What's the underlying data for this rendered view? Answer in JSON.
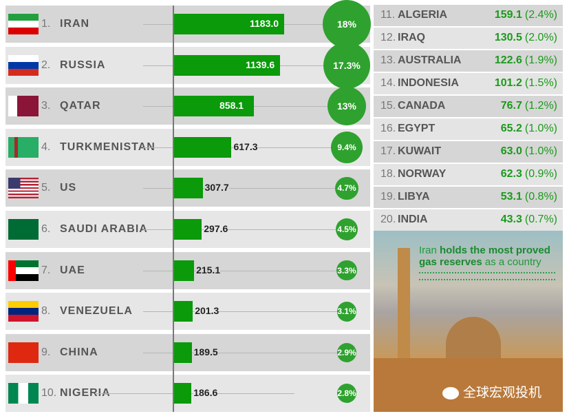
{
  "chart_data": {
    "type": "bar",
    "title": "",
    "categories": [
      "IRAN",
      "RUSSIA",
      "QATAR",
      "TURKMENISTAN",
      "US",
      "SAUDI ARABIA",
      "UAE",
      "VENEZUELA",
      "CHINA",
      "NIGERIA"
    ],
    "ranks": [
      "1.",
      "2.",
      "3.",
      "4.",
      "5.",
      "6.",
      "7.",
      "8.",
      "9.",
      "10."
    ],
    "values": [
      1183.0,
      1139.6,
      858.1,
      617.3,
      307.7,
      297.6,
      215.1,
      201.3,
      189.5,
      186.6
    ],
    "value_labels": [
      "1183.0",
      "1139.6",
      "858.1",
      "617.3",
      "307.7",
      "297.6",
      "215.1",
      "201.3",
      "189.5",
      "186.6"
    ],
    "shares": [
      "18%",
      "17.3%",
      "13%",
      "9.4%",
      "4.7%",
      "4.5%",
      "3.3%",
      "3.1%",
      "2.9%",
      "2.8%"
    ],
    "share_values": [
      18,
      17.3,
      13,
      9.4,
      4.7,
      4.5,
      3.3,
      3.1,
      2.9,
      2.8
    ],
    "flags": [
      "iran-flag",
      "russia-flag",
      "qatar-flag",
      "turkmenistan-flag",
      "us-flag",
      "saudi-arabia-flag",
      "uae-flag",
      "venezuela-flag",
      "china-flag",
      "nigeria-flag"
    ],
    "bar_color": "#0a9a0a",
    "circle_color": "#2fa12f"
  },
  "others": [
    {
      "rank": "11.",
      "name": "ALGERIA",
      "value": "159.1",
      "share": "(2.4%)"
    },
    {
      "rank": "12.",
      "name": "IRAQ",
      "value": "130.5",
      "share": "(2.0%)"
    },
    {
      "rank": "13.",
      "name": "AUSTRALIA",
      "value": "122.6",
      "share": "(1.9%)"
    },
    {
      "rank": "14.",
      "name": "INDONESIA",
      "value": "101.2",
      "share": "(1.5%)"
    },
    {
      "rank": "15.",
      "name": "CANADA",
      "value": "76.7",
      "share": "(1.2%)"
    },
    {
      "rank": "16.",
      "name": "EGYPT",
      "value": "65.2",
      "share": "(1.0%)"
    },
    {
      "rank": "17.",
      "name": "KUWAIT",
      "value": "63.0",
      "share": "(1.0%)"
    },
    {
      "rank": "18.",
      "name": "NORWAY",
      "value": "62.3",
      "share": "(0.9%)"
    },
    {
      "rank": "19.",
      "name": "LIBYA",
      "value": "53.1",
      "share": "(0.8%)"
    },
    {
      "rank": "20.",
      "name": "INDIA",
      "value": "43.3",
      "share": "(0.7%)"
    }
  ],
  "caption": {
    "p1": "Iran ",
    "p2": "holds the most proved gas reserves",
    "p3": " as a country"
  },
  "watermark": "全球宏观投机"
}
